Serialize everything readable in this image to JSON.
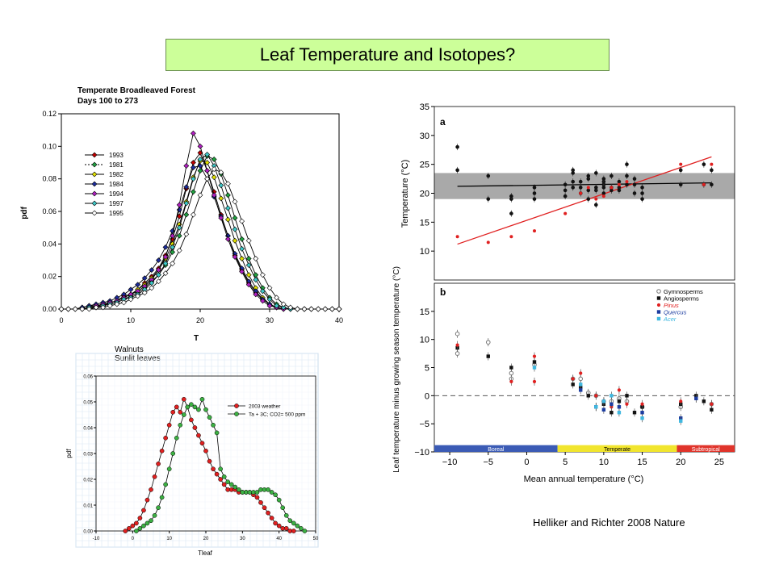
{
  "slide": {
    "title": "Leaf Temperature and Isotopes?",
    "citation": "Helliker and Richter 2008 Nature"
  },
  "colors": {
    "title_bg": "#ccff99",
    "red": "#e02020",
    "green": "#3cb043",
    "gray_band": "#a9a9a9",
    "boreal": "#3b5bb5",
    "temperate": "#f1e52e",
    "subtropical": "#e0342b"
  },
  "chart_data": [
    {
      "id": "forest",
      "type": "line",
      "title": "Temperate Broadleaved Forest",
      "subtitle": "Days 100 to 273",
      "xlabel": "T",
      "ylabel": "pdf",
      "xlim": [
        0,
        40
      ],
      "ylim": [
        0,
        0.12
      ],
      "xticks": [
        "0",
        "10",
        "20",
        "30",
        "40"
      ],
      "yticks": [
        "0.00",
        "0.02",
        "0.04",
        "0.06",
        "0.08",
        "0.10",
        "0.12"
      ],
      "legend_position": "left",
      "x": [
        0,
        1,
        2,
        3,
        4,
        5,
        6,
        7,
        8,
        9,
        10,
        11,
        12,
        13,
        14,
        15,
        16,
        17,
        18,
        19,
        20,
        21,
        22,
        23,
        24,
        25,
        26,
        27,
        28,
        29,
        30,
        31,
        32,
        33,
        34,
        35,
        36,
        37,
        38,
        39,
        40
      ],
      "series": [
        {
          "name": "1993",
          "color": "#c00000",
          "values": [
            0,
            0,
            0,
            0.001,
            0.002,
            0.002,
            0.003,
            0.004,
            0.005,
            0.008,
            0.009,
            0.012,
            0.016,
            0.02,
            0.025,
            0.033,
            0.043,
            0.057,
            0.074,
            0.09,
            0.096,
            0.085,
            0.072,
            0.058,
            0.045,
            0.033,
            0.024,
            0.016,
            0.01,
            0.006,
            0.003,
            0.001,
            0,
            0,
            0,
            0,
            0,
            0,
            0,
            0,
            0
          ]
        },
        {
          "name": "1981",
          "color": "#20a040",
          "values": [
            0,
            0,
            0,
            0,
            0.001,
            0.001,
            0.002,
            0.003,
            0.004,
            0.006,
            0.008,
            0.01,
            0.013,
            0.017,
            0.021,
            0.027,
            0.035,
            0.045,
            0.058,
            0.072,
            0.085,
            0.094,
            0.092,
            0.083,
            0.07,
            0.056,
            0.043,
            0.031,
            0.021,
            0.013,
            0.007,
            0.003,
            0.001,
            0,
            0,
            0,
            0,
            0,
            0,
            0,
            0
          ]
        },
        {
          "name": "1982",
          "color": "#e0e000",
          "values": [
            0,
            0,
            0,
            0,
            0.001,
            0.002,
            0.002,
            0.004,
            0.005,
            0.007,
            0.009,
            0.012,
            0.015,
            0.019,
            0.024,
            0.031,
            0.04,
            0.052,
            0.066,
            0.081,
            0.091,
            0.09,
            0.081,
            0.068,
            0.055,
            0.042,
            0.031,
            0.021,
            0.013,
            0.007,
            0.003,
            0.001,
            0,
            0,
            0,
            0,
            0,
            0,
            0,
            0,
            0
          ]
        },
        {
          "name": "1984",
          "color": "#1c2c9c",
          "values": [
            0,
            0,
            0,
            0.001,
            0.002,
            0.003,
            0.004,
            0.005,
            0.007,
            0.009,
            0.012,
            0.015,
            0.019,
            0.024,
            0.03,
            0.038,
            0.048,
            0.061,
            0.075,
            0.087,
            0.088,
            0.08,
            0.069,
            0.057,
            0.045,
            0.034,
            0.025,
            0.017,
            0.011,
            0.006,
            0.003,
            0.001,
            0,
            0,
            0,
            0,
            0,
            0,
            0,
            0,
            0
          ]
        },
        {
          "name": "1994",
          "color": "#b020c0",
          "values": [
            0,
            0,
            0,
            0,
            0.001,
            0.002,
            0.003,
            0.004,
            0.005,
            0.007,
            0.009,
            0.011,
            0.014,
            0.018,
            0.024,
            0.032,
            0.045,
            0.064,
            0.088,
            0.108,
            0.1,
            0.085,
            0.07,
            0.056,
            0.043,
            0.032,
            0.023,
            0.015,
            0.009,
            0.005,
            0.002,
            0.001,
            0,
            0,
            0,
            0,
            0,
            0,
            0,
            0,
            0
          ]
        },
        {
          "name": "1997",
          "color": "#40c8c8",
          "values": [
            0,
            0,
            0,
            0,
            0.001,
            0.001,
            0.002,
            0.003,
            0.004,
            0.006,
            0.007,
            0.009,
            0.012,
            0.016,
            0.021,
            0.028,
            0.038,
            0.05,
            0.065,
            0.08,
            0.092,
            0.095,
            0.088,
            0.076,
            0.062,
            0.049,
            0.037,
            0.027,
            0.018,
            0.011,
            0.006,
            0.002,
            0.001,
            0,
            0,
            0,
            0,
            0,
            0,
            0,
            0
          ]
        },
        {
          "name": "1995",
          "color": "#ffffff",
          "values": [
            0,
            0,
            0,
            0,
            0,
            0.001,
            0.001,
            0.002,
            0.003,
            0.004,
            0.006,
            0.008,
            0.01,
            0.013,
            0.017,
            0.022,
            0.028,
            0.036,
            0.046,
            0.058,
            0.07,
            0.08,
            0.086,
            0.084,
            0.077,
            0.066,
            0.054,
            0.042,
            0.031,
            0.021,
            0.013,
            0.007,
            0.003,
            0.001,
            0,
            0,
            0,
            0,
            0,
            0,
            0
          ]
        }
      ]
    },
    {
      "id": "walnut",
      "type": "line",
      "title": "Walnuts",
      "subtitle": "Sunlit leaves",
      "xlabel": "Tleaf",
      "ylabel": "pdf",
      "xlim": [
        -10,
        50
      ],
      "ylim": [
        0,
        0.06
      ],
      "xticks": [
        "-10",
        "0",
        "10",
        "20",
        "30",
        "40",
        "50"
      ],
      "yticks": [
        "0.00",
        "0.01",
        "0.02",
        "0.03",
        "0.04",
        "0.05",
        "0.06"
      ],
      "grid": true,
      "legend_position": "top-right",
      "series": [
        {
          "name": "2003 weather",
          "color": "#e02020",
          "x": [
            -2,
            -1,
            0,
            1,
            2,
            3,
            4,
            5,
            6,
            7,
            8,
            9,
            10,
            11,
            12,
            13,
            14,
            15,
            16,
            17,
            18,
            19,
            20,
            21,
            22,
            23,
            24,
            25,
            26,
            27,
            28,
            29,
            30,
            31,
            32,
            33,
            34,
            35,
            36,
            37,
            38,
            39,
            40,
            41,
            42,
            43,
            44
          ],
          "values": [
            0,
            0.001,
            0.002,
            0.003,
            0.005,
            0.008,
            0.012,
            0.016,
            0.021,
            0.026,
            0.031,
            0.036,
            0.041,
            0.046,
            0.048,
            0.046,
            0.051,
            0.048,
            0.043,
            0.04,
            0.037,
            0.034,
            0.031,
            0.027,
            0.024,
            0.022,
            0.02,
            0.018,
            0.016,
            0.016,
            0.016,
            0.015,
            0.015,
            0.015,
            0.015,
            0.014,
            0.013,
            0.011,
            0.009,
            0.007,
            0.005,
            0.003,
            0.002,
            0.001,
            0.001,
            0,
            0
          ]
        },
        {
          "name": "Ta + 3C; CO2= 500 ppm",
          "color": "#3cb043",
          "x": [
            1,
            2,
            3,
            4,
            5,
            6,
            7,
            8,
            9,
            10,
            11,
            12,
            13,
            14,
            15,
            16,
            17,
            18,
            19,
            20,
            21,
            22,
            23,
            24,
            25,
            26,
            27,
            28,
            29,
            30,
            31,
            32,
            33,
            34,
            35,
            36,
            37,
            38,
            39,
            40,
            41,
            42,
            43,
            44,
            45,
            46,
            47
          ],
          "values": [
            0,
            0.001,
            0.002,
            0.003,
            0.004,
            0.006,
            0.009,
            0.013,
            0.018,
            0.024,
            0.03,
            0.036,
            0.041,
            0.045,
            0.048,
            0.049,
            0.048,
            0.047,
            0.051,
            0.047,
            0.044,
            0.041,
            0.038,
            0.024,
            0.021,
            0.019,
            0.018,
            0.017,
            0.016,
            0.015,
            0.015,
            0.015,
            0.015,
            0.015,
            0.016,
            0.016,
            0.016,
            0.015,
            0.014,
            0.012,
            0.009,
            0.006,
            0.004,
            0.003,
            0.002,
            0.001,
            0
          ]
        }
      ]
    },
    {
      "id": "panel-a",
      "type": "scatter",
      "panel_label": "a",
      "ylabel": "Temperature (°C)",
      "xlim": [
        -12,
        27
      ],
      "ylim": [
        5,
        35
      ],
      "yticks": [
        "10",
        "15",
        "20",
        "25",
        "30",
        "35"
      ],
      "band": {
        "low": 19,
        "high": 23.5
      },
      "black_points": {
        "x": [
          -9,
          -9,
          -5,
          -5,
          -2,
          -2,
          -2,
          1,
          1,
          1,
          5,
          5,
          5,
          6,
          6,
          6,
          6,
          7,
          7,
          7,
          8,
          8,
          8,
          8,
          9,
          9,
          9,
          9,
          10,
          10,
          10,
          10,
          10,
          11,
          11,
          11,
          12,
          12,
          12,
          13,
          13,
          13,
          14,
          14,
          14,
          15,
          15,
          15,
          20,
          20,
          23,
          23,
          24,
          24
        ],
        "y": [
          28,
          24,
          23,
          19,
          19,
          16.5,
          19.5,
          20,
          19,
          21,
          21.5,
          19.5,
          20.5,
          24,
          22,
          23.5,
          21,
          21,
          20,
          22,
          22.5,
          20.5,
          19,
          23,
          20.5,
          21,
          18,
          23.5,
          21.5,
          22,
          20,
          22.5,
          21,
          21,
          20.5,
          23,
          21,
          22,
          20.5,
          23,
          21.5,
          25,
          21.5,
          20,
          22.5,
          21,
          20,
          19,
          24,
          21.5,
          25,
          21.5,
          24,
          21.5
        ]
      },
      "red_points": {
        "x": [
          -9,
          -5,
          -2,
          1,
          5,
          7,
          8,
          9,
          10,
          11,
          12,
          13,
          20,
          23,
          24
        ],
        "y": [
          12.5,
          11.5,
          12.5,
          13.5,
          16.5,
          20,
          21,
          19,
          19.5,
          21,
          21.5,
          22,
          25,
          21.5,
          25
        ]
      },
      "black_fit": {
        "x": [
          -9,
          24
        ],
        "y": [
          21.2,
          21.8
        ]
      },
      "red_fit": {
        "x": [
          -9,
          24
        ],
        "y": [
          11.2,
          26.3
        ]
      }
    },
    {
      "id": "panel-b",
      "type": "scatter",
      "panel_label": "b",
      "ylabel": "Leaf temperature minus growing season temperature (°C)",
      "xlabel": "Mean annual temperature (°C)",
      "xlim": [
        -12,
        27
      ],
      "ylim": [
        -10,
        20
      ],
      "xticks": [
        "−10",
        "−5",
        "0",
        "5",
        "10",
        "15",
        "20",
        "25"
      ],
      "yticks": [
        "−10",
        "−5",
        "0",
        "5",
        "10",
        "15"
      ],
      "legend_position": "top-right",
      "legend": [
        "Gymnosperms",
        "Angiosperms",
        "Pinus",
        "Quercus",
        "Acer"
      ],
      "zones": [
        {
          "name": "Boreal",
          "from": -12,
          "to": 4
        },
        {
          "name": "Temperate",
          "from": 4,
          "to": 19.5
        },
        {
          "name": "Subtropical",
          "from": 19.5,
          "to": 27
        }
      ],
      "gymnosperms": {
        "x": [
          -9,
          -9,
          -5,
          -2,
          -2,
          1,
          6,
          7,
          8,
          9,
          10,
          11,
          12,
          13,
          15,
          20,
          24
        ],
        "y": [
          11,
          7.5,
          9.5,
          4,
          3,
          5.5,
          3,
          3,
          0.5,
          0,
          -1,
          -1,
          -0.5,
          -1,
          -2,
          -2,
          -1.5
        ]
      },
      "angiosperms": {
        "x": [
          -9,
          -5,
          -2,
          1,
          6,
          7,
          8,
          9,
          10,
          11,
          12,
          13,
          14,
          15,
          20,
          22,
          23,
          24
        ],
        "y": [
          8.5,
          7,
          5,
          6,
          2,
          1.5,
          0,
          -2,
          -1.5,
          -3,
          -1,
          0,
          -3,
          -2,
          -1.5,
          0,
          -1,
          -2.5
        ]
      },
      "pinus": {
        "x": [
          -9,
          -2,
          1,
          1,
          6,
          7,
          9,
          10,
          11,
          12,
          13,
          15,
          20,
          22,
          24
        ],
        "y": [
          9,
          2.5,
          2.5,
          7,
          3,
          4,
          0,
          -1,
          -2,
          1,
          -1.5,
          -1.5,
          -1,
          -0.5,
          -1.5
        ]
      },
      "quercus": {
        "x": [
          7,
          9,
          10,
          11,
          12,
          15,
          20,
          22
        ],
        "y": [
          1,
          -2,
          -2.5,
          -1.5,
          -2,
          -3,
          -4,
          -0.5
        ]
      },
      "acer": {
        "x": [
          1,
          7,
          9,
          10,
          11,
          12,
          15,
          20
        ],
        "y": [
          5,
          2,
          -2,
          -1,
          0,
          -3,
          -4,
          -4.5
        ]
      }
    }
  ]
}
